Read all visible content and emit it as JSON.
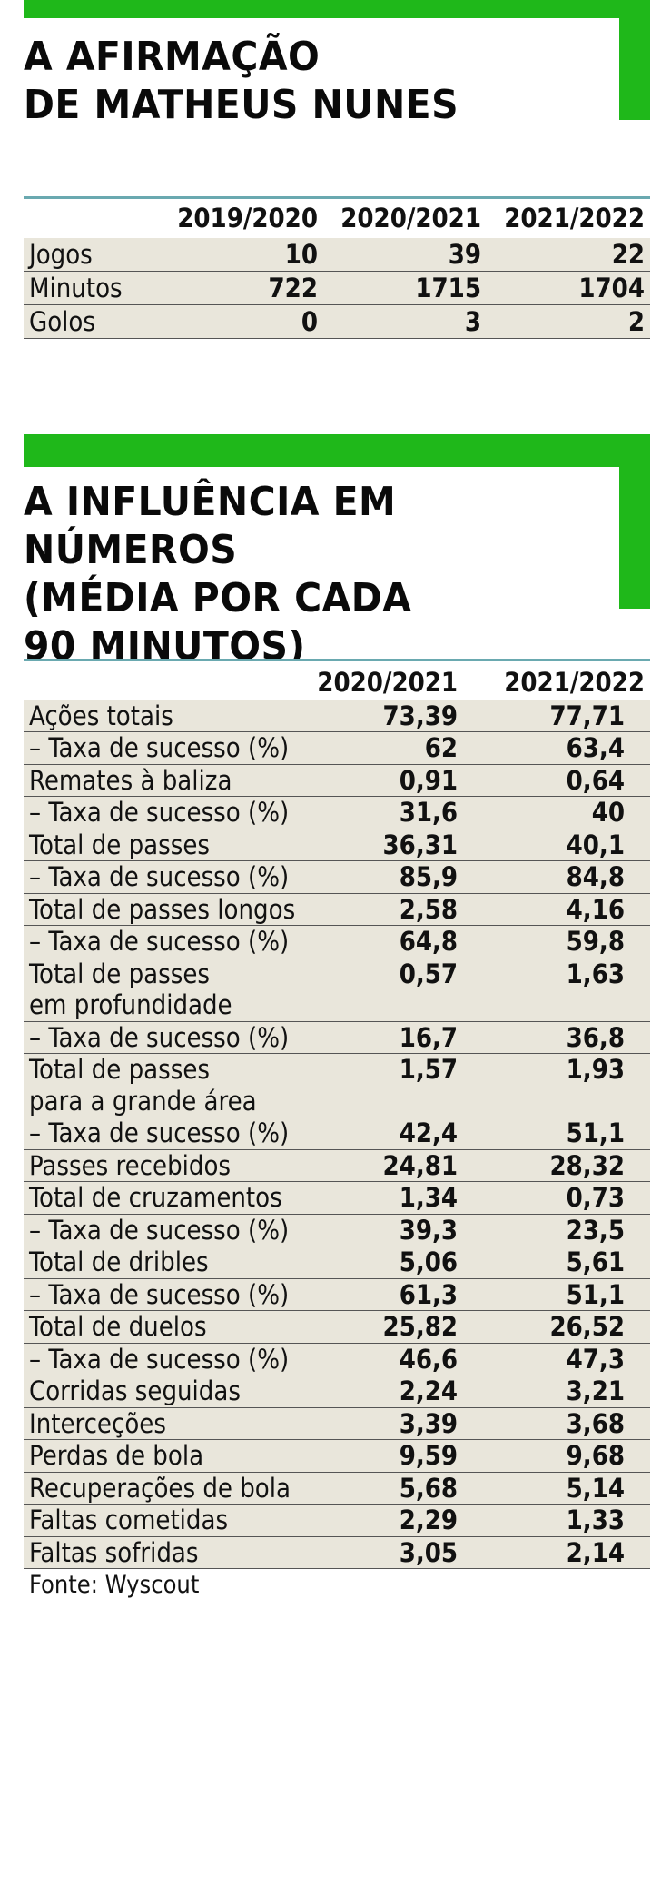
{
  "colors": {
    "accent_green": "#1fb81a",
    "band_beige": "#e9e6db",
    "rule_teal": "#6aa9b0"
  },
  "section1": {
    "title": "A AFIRMAÇÃO\nDE MATHEUS NUNES",
    "headers": [
      "2019/2020",
      "2020/2021",
      "2021/2022"
    ],
    "rows": [
      {
        "label": "Jogos",
        "values": [
          "10",
          "39",
          "22"
        ]
      },
      {
        "label": "Minutos",
        "values": [
          "722",
          "1715",
          "1704"
        ]
      },
      {
        "label": "Golos",
        "values": [
          "0",
          "3",
          "2"
        ]
      }
    ]
  },
  "section2": {
    "title": "A INFLUÊNCIA EM NÚMEROS\n(MÉDIA POR CADA\n 90 MINUTOS)",
    "headers": [
      "2020/2021",
      "2021/2022"
    ],
    "rows": [
      {
        "label": "Ações totais",
        "values": [
          "73,39",
          "77,71"
        ]
      },
      {
        "label": "– Taxa de sucesso (%)",
        "values": [
          "62",
          "63,4"
        ]
      },
      {
        "label": "Remates à baliza",
        "values": [
          "0,91",
          "0,64"
        ]
      },
      {
        "label": "– Taxa de sucesso (%)",
        "values": [
          "31,6",
          "40"
        ]
      },
      {
        "label": "Total de passes",
        "values": [
          "36,31",
          "40,1"
        ]
      },
      {
        "label": "– Taxa de sucesso (%)",
        "values": [
          "85,9",
          "84,8"
        ]
      },
      {
        "label": "Total de passes longos",
        "values": [
          "2,58",
          "4,16"
        ]
      },
      {
        "label": "– Taxa de sucesso (%)",
        "values": [
          "64,8",
          "59,8"
        ]
      },
      {
        "label": "Total de passes\nem profundidade",
        "values": [
          "0,57",
          "1,63"
        ]
      },
      {
        "label": "– Taxa de sucesso (%)",
        "values": [
          "16,7",
          "36,8"
        ]
      },
      {
        "label": "Total de passes\npara a grande área",
        "values": [
          "1,57",
          "1,93"
        ]
      },
      {
        "label": "– Taxa de sucesso (%)",
        "values": [
          "42,4",
          "51,1"
        ]
      },
      {
        "label": "Passes recebidos",
        "values": [
          "24,81",
          "28,32"
        ]
      },
      {
        "label": "Total de cruzamentos",
        "values": [
          "1,34",
          "0,73"
        ]
      },
      {
        "label": "– Taxa de sucesso (%)",
        "values": [
          "39,3",
          "23,5"
        ]
      },
      {
        "label": "Total de dribles",
        "values": [
          "5,06",
          "5,61"
        ]
      },
      {
        "label": "– Taxa de sucesso (%)",
        "values": [
          "61,3",
          "51,1"
        ]
      },
      {
        "label": "Total de duelos",
        "values": [
          "25,82",
          "26,52"
        ]
      },
      {
        "label": "– Taxa de sucesso (%)",
        "values": [
          "46,6",
          "47,3"
        ]
      },
      {
        "label": "Corridas seguidas",
        "values": [
          "2,24",
          "3,21"
        ]
      },
      {
        "label": "Interceções",
        "values": [
          "3,39",
          "3,68"
        ]
      },
      {
        "label": "Perdas de bola",
        "values": [
          "9,59",
          "9,68"
        ]
      },
      {
        "label": "Recuperações de bola",
        "values": [
          "5,68",
          "5,14"
        ]
      },
      {
        "label": "Faltas cometidas",
        "values": [
          "2,29",
          "1,33"
        ]
      },
      {
        "label": "Faltas sofridas",
        "values": [
          "3,05",
          "2,14"
        ]
      }
    ],
    "source": "Fonte: Wyscout"
  }
}
